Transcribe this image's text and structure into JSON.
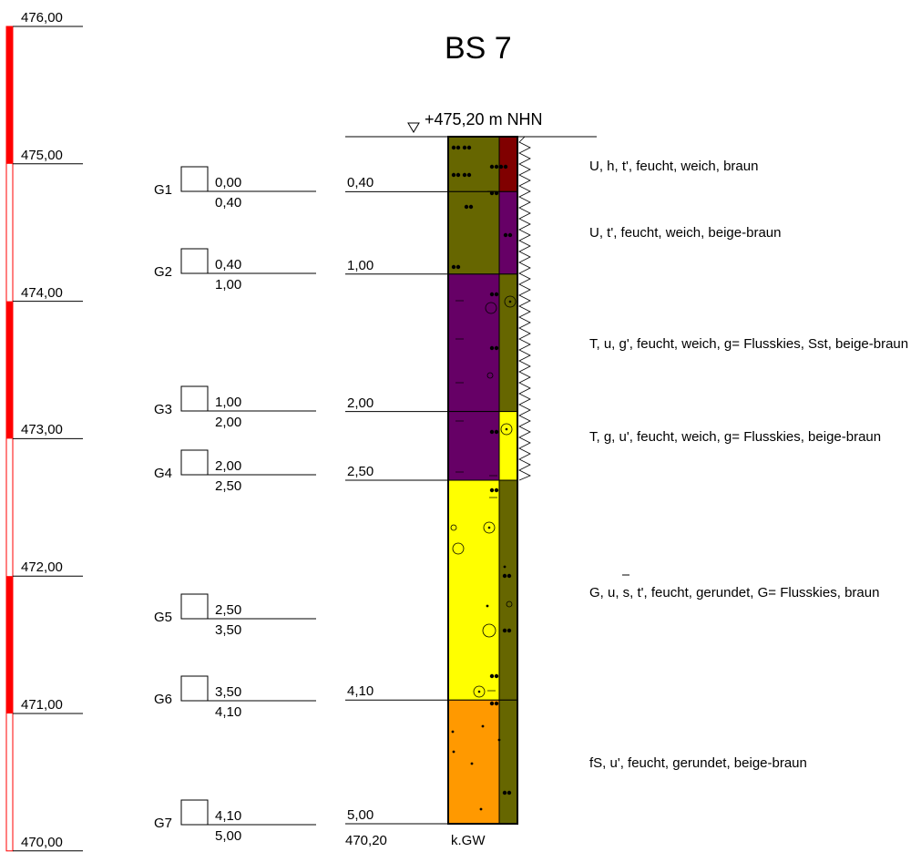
{
  "title": "BS 7",
  "elevation_label": "+475,20 m NHN",
  "bottom_elevation": "470,20",
  "groundwater_label": "k.GW",
  "scale": {
    "ticks": [
      "476,00",
      "475,00",
      "474,00",
      "473,00",
      "472,00",
      "471,00",
      "470,00"
    ],
    "fill_color": "#ff0000"
  },
  "depth_marks": [
    "0,40",
    "1,00",
    "2,00",
    "2,50",
    "4,10",
    "5,00"
  ],
  "samples": [
    {
      "id": "G1",
      "top": "0,00",
      "bottom": "0,40"
    },
    {
      "id": "G2",
      "top": "0,40",
      "bottom": "1,00"
    },
    {
      "id": "G3",
      "top": "1,00",
      "bottom": "2,00"
    },
    {
      "id": "G4",
      "top": "2,00",
      "bottom": "2,50"
    },
    {
      "id": "G5",
      "top": "2,50",
      "bottom": "3,50"
    },
    {
      "id": "G6",
      "top": "3,50",
      "bottom": "4,10"
    },
    {
      "id": "G7",
      "top": "4,10",
      "bottom": "5,00"
    }
  ],
  "layers": [
    {
      "from": 0.0,
      "to": 0.4,
      "color": "#666600",
      "strip_color": "#800000",
      "description": "U, h, t', feucht, weich, braun"
    },
    {
      "from": 0.4,
      "to": 1.0,
      "color": "#666600",
      "strip_color": "#660066",
      "description": "U, t', feucht, weich, beige-braun"
    },
    {
      "from": 1.0,
      "to": 2.0,
      "color": "#660066",
      "strip_color": "#666600",
      "description": "T, u, g', feucht, weich, g= Flusskies, Sst, beige-braun"
    },
    {
      "from": 2.0,
      "to": 2.5,
      "color": "#660066",
      "strip_color": "#ffff00",
      "description": "T, g, u', feucht, weich, g= Flusskies, beige-braun"
    },
    {
      "from": 2.5,
      "to": 4.1,
      "color": "#ffff00",
      "strip_color": "#666600",
      "description": "G, u, s, t', feucht, gerundet, G= Flusskies, braun"
    },
    {
      "from": 4.1,
      "to": 5.0,
      "color": "#ff9900",
      "strip_color": "#666600",
      "description": "fS, u', feucht, gerundet, beige-braun"
    }
  ]
}
